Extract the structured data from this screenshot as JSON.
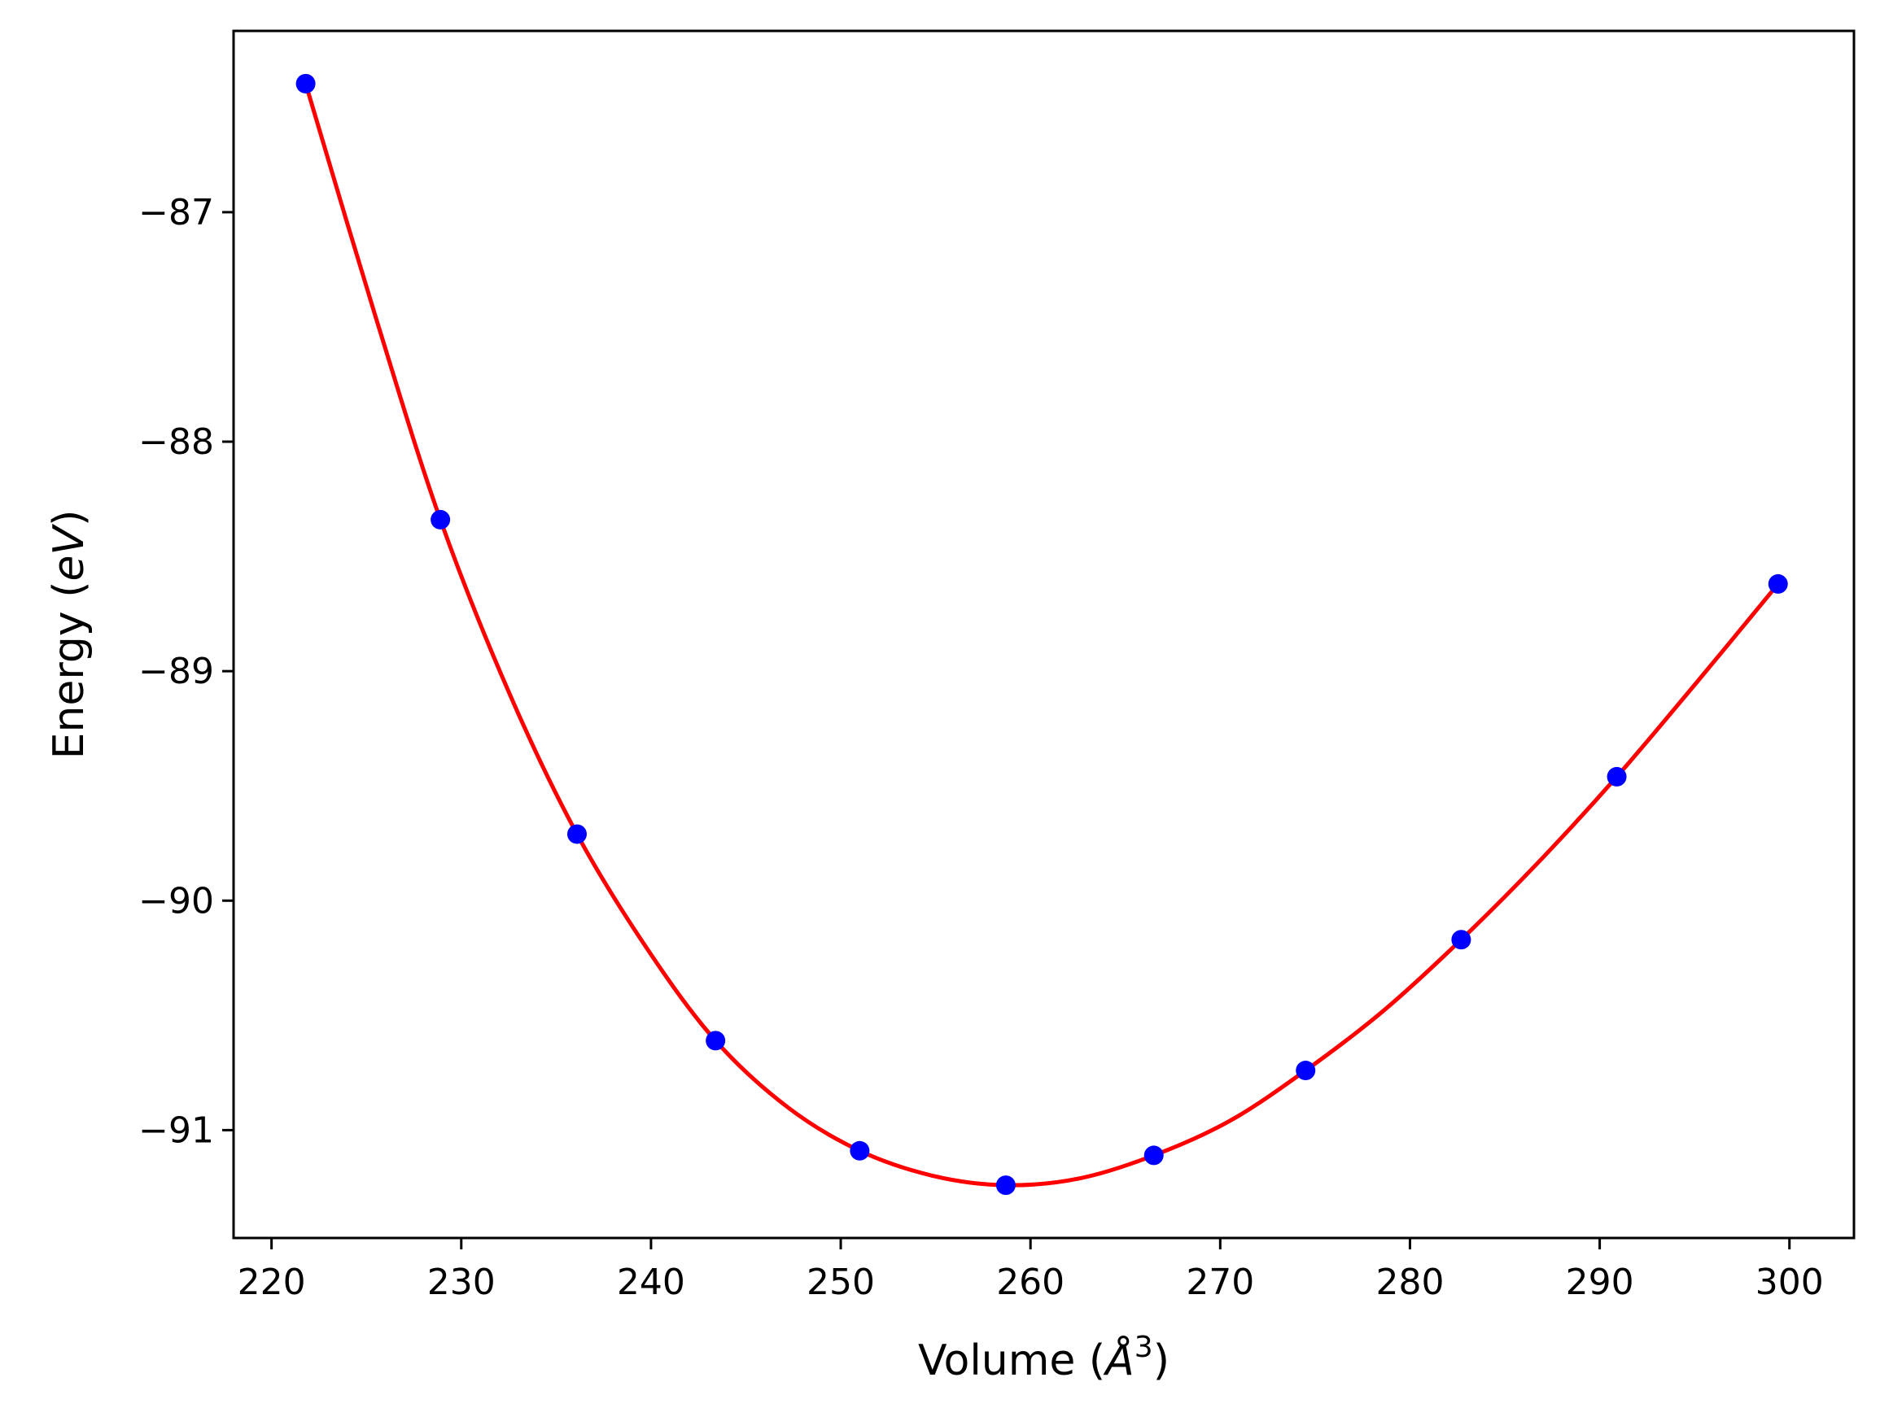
{
  "chart_data": {
    "type": "scatter",
    "title": "",
    "xlabel_text": "Volume (",
    "xlabel_symbol": "Å",
    "xlabel_sup": "3",
    "xlabel_close": ")",
    "ylabel_text": "Energy (",
    "ylabel_symbol": "eV",
    "ylabel_close": ")",
    "xlim": [
      218,
      303.4
    ],
    "ylim": [
      -91.47,
      -86.21
    ],
    "x_ticks": [
      220,
      230,
      240,
      250,
      260,
      270,
      280,
      290,
      300
    ],
    "y_ticks": [
      -87,
      -88,
      -89,
      -90,
      -91
    ],
    "y_tick_labels": [
      "−87",
      "−88",
      "−89",
      "−90",
      "−91"
    ],
    "grid": false,
    "series": [
      {
        "kind": "points",
        "color": "#0000ff",
        "x": [
          221.8,
          228.9,
          236.1,
          243.4,
          251.0,
          258.7,
          266.5,
          274.5,
          282.7,
          290.9,
          299.4
        ],
        "y": [
          -86.44,
          -88.34,
          -89.71,
          -90.61,
          -91.09,
          -91.24,
          -91.11,
          -90.74,
          -90.17,
          -89.46,
          -88.62
        ]
      },
      {
        "kind": "fit-curve",
        "color": "#ff0000",
        "x": [
          221.8,
          225.5,
          228.9,
          232.5,
          236.1,
          239.8,
          243.4,
          247.2,
          251.0,
          254.9,
          258.7,
          262.6,
          266.5,
          270.5,
          274.5,
          278.6,
          282.7,
          286.8,
          290.9,
          295.1,
          299.4
        ],
        "y": [
          -86.44,
          -87.46,
          -88.34,
          -89.09,
          -89.71,
          -90.21,
          -90.61,
          -90.9,
          -91.09,
          -91.2,
          -91.24,
          -91.21,
          -91.11,
          -90.96,
          -90.74,
          -90.48,
          -90.17,
          -89.83,
          -89.46,
          -89.05,
          -88.62
        ]
      }
    ]
  }
}
